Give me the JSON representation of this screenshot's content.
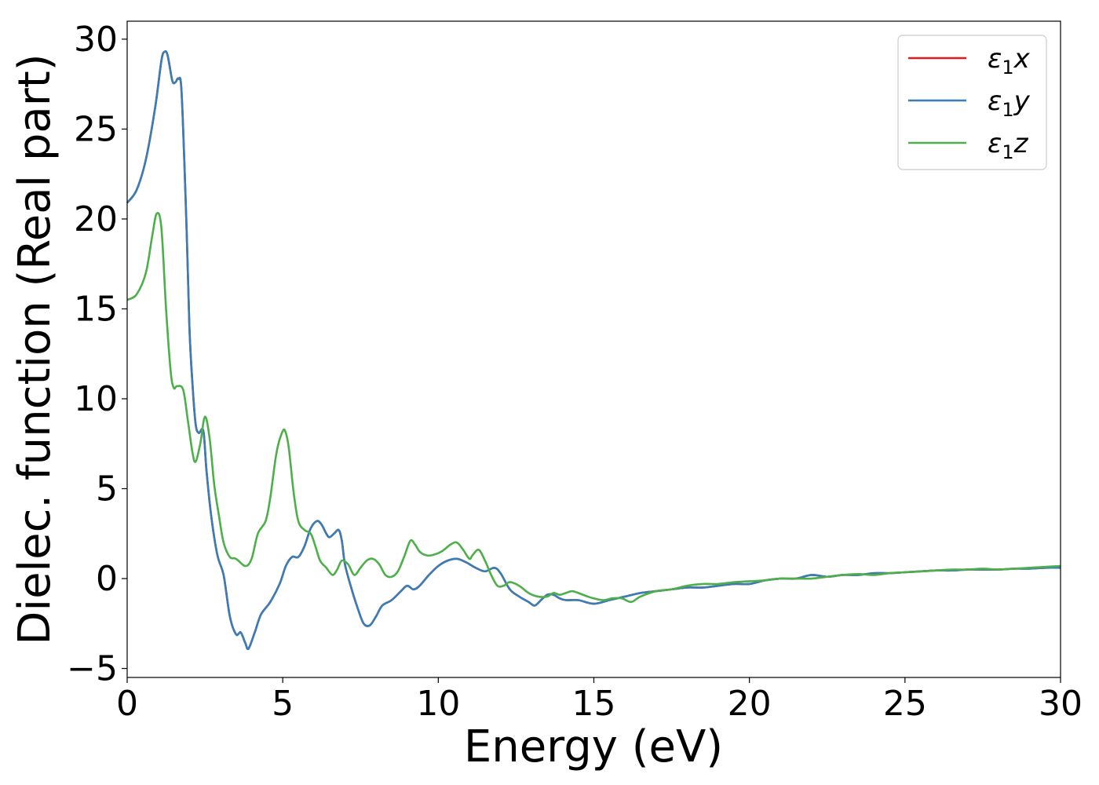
{
  "chart_data": {
    "type": "line",
    "xlabel": "Energy (eV)",
    "ylabel": "Dielec. function (Real part)",
    "xlim": [
      0,
      30
    ],
    "ylim": [
      -5.5,
      31
    ],
    "xticks": [
      0,
      5,
      10,
      15,
      20,
      25,
      30
    ],
    "yticks": [
      -5,
      0,
      5,
      10,
      15,
      20,
      25,
      30
    ],
    "xtick_labels": [
      "0",
      "5",
      "10",
      "15",
      "20",
      "25",
      "30"
    ],
    "ytick_labels": [
      "−5",
      "0",
      "5",
      "10",
      "15",
      "20",
      "25",
      "30"
    ],
    "grid": false,
    "legend_position": "top-right",
    "series": [
      {
        "name": "x",
        "color": "#e41a1c",
        "x": [
          0,
          0.3,
          0.6,
          0.9,
          1.1,
          1.2,
          1.3,
          1.45,
          1.55,
          1.65,
          1.75,
          1.9,
          2.0,
          2.1,
          2.2,
          2.3,
          2.45,
          2.55,
          2.7,
          2.9,
          3.1,
          3.3,
          3.5,
          3.65,
          3.8,
          3.9,
          4.1,
          4.3,
          4.6,
          4.9,
          5.1,
          5.3,
          5.5,
          5.7,
          5.9,
          6.1,
          6.25,
          6.4,
          6.5,
          6.65,
          6.8,
          6.9,
          7.0,
          7.2,
          7.4,
          7.6,
          7.8,
          8.0,
          8.2,
          8.5,
          8.8,
          9.0,
          9.2,
          9.4,
          9.7,
          10.0,
          10.3,
          10.6,
          10.9,
          11.2,
          11.5,
          11.8,
          12.0,
          12.3,
          12.6,
          12.9,
          13.1,
          13.3,
          13.5,
          13.7,
          13.9,
          14.1,
          14.5,
          15.0,
          15.5,
          16.0,
          16.5,
          17.0,
          17.5,
          18.0,
          18.5,
          19.0,
          19.5,
          20.0,
          20.5,
          21.0,
          21.5,
          22.0,
          22.5,
          23.0,
          23.5,
          24.0,
          24.5,
          25.0,
          25.5,
          26.0,
          26.5,
          27.0,
          27.5,
          28.0,
          28.5,
          29.0,
          29.5,
          30.0
        ],
        "y": [
          20.9,
          21.6,
          23.3,
          26.2,
          28.8,
          29.3,
          29.1,
          27.7,
          27.6,
          27.8,
          27.0,
          20.0,
          14.0,
          10.8,
          8.6,
          8.1,
          8.2,
          6.0,
          3.5,
          1.3,
          0.2,
          -2.1,
          -3.1,
          -3.0,
          -3.6,
          -3.9,
          -3.0,
          -2.0,
          -1.3,
          -0.3,
          0.7,
          1.2,
          1.2,
          1.8,
          2.8,
          3.2,
          3.0,
          2.5,
          2.3,
          2.5,
          2.7,
          2.1,
          0.8,
          -0.5,
          -1.6,
          -2.5,
          -2.6,
          -2.1,
          -1.5,
          -1.2,
          -0.7,
          -0.4,
          -0.6,
          -0.4,
          0.2,
          0.7,
          1.0,
          1.1,
          0.9,
          0.6,
          0.4,
          0.6,
          0.3,
          -0.6,
          -1.0,
          -1.3,
          -1.5,
          -1.2,
          -0.9,
          -0.9,
          -1.1,
          -1.2,
          -1.2,
          -1.4,
          -1.2,
          -1.0,
          -0.8,
          -0.7,
          -0.6,
          -0.5,
          -0.5,
          -0.4,
          -0.3,
          -0.3,
          -0.1,
          0.0,
          0.0,
          0.2,
          0.1,
          0.2,
          0.2,
          0.3,
          0.3,
          0.35,
          0.4,
          0.45,
          0.45,
          0.5,
          0.5,
          0.5,
          0.55,
          0.55,
          0.6,
          0.6
        ]
      },
      {
        "name": "y",
        "color": "#377eb8",
        "x": [
          0,
          0.3,
          0.6,
          0.9,
          1.1,
          1.2,
          1.3,
          1.45,
          1.55,
          1.65,
          1.75,
          1.9,
          2.0,
          2.1,
          2.2,
          2.3,
          2.45,
          2.55,
          2.7,
          2.9,
          3.1,
          3.3,
          3.5,
          3.65,
          3.8,
          3.9,
          4.1,
          4.3,
          4.6,
          4.9,
          5.1,
          5.3,
          5.5,
          5.7,
          5.9,
          6.1,
          6.25,
          6.4,
          6.5,
          6.65,
          6.8,
          6.9,
          7.0,
          7.2,
          7.4,
          7.6,
          7.8,
          8.0,
          8.2,
          8.5,
          8.8,
          9.0,
          9.2,
          9.4,
          9.7,
          10.0,
          10.3,
          10.6,
          10.9,
          11.2,
          11.5,
          11.8,
          12.0,
          12.3,
          12.6,
          12.9,
          13.1,
          13.3,
          13.5,
          13.7,
          13.9,
          14.1,
          14.5,
          15.0,
          15.5,
          16.0,
          16.5,
          17.0,
          17.5,
          18.0,
          18.5,
          19.0,
          19.5,
          20.0,
          20.5,
          21.0,
          21.5,
          22.0,
          22.5,
          23.0,
          23.5,
          24.0,
          24.5,
          25.0,
          25.5,
          26.0,
          26.5,
          27.0,
          27.5,
          28.0,
          28.5,
          29.0,
          29.5,
          30.0
        ],
        "y": [
          20.9,
          21.6,
          23.3,
          26.2,
          28.8,
          29.3,
          29.1,
          27.7,
          27.6,
          27.8,
          27.0,
          20.0,
          14.0,
          10.8,
          8.6,
          8.1,
          8.2,
          6.0,
          3.5,
          1.3,
          0.2,
          -2.1,
          -3.1,
          -3.0,
          -3.6,
          -3.9,
          -3.0,
          -2.0,
          -1.3,
          -0.3,
          0.7,
          1.2,
          1.2,
          1.8,
          2.8,
          3.2,
          3.0,
          2.5,
          2.3,
          2.5,
          2.7,
          2.1,
          0.8,
          -0.5,
          -1.6,
          -2.5,
          -2.6,
          -2.1,
          -1.5,
          -1.2,
          -0.7,
          -0.4,
          -0.6,
          -0.4,
          0.2,
          0.7,
          1.0,
          1.1,
          0.9,
          0.6,
          0.4,
          0.6,
          0.3,
          -0.6,
          -1.0,
          -1.3,
          -1.5,
          -1.2,
          -0.9,
          -0.9,
          -1.1,
          -1.2,
          -1.2,
          -1.4,
          -1.2,
          -1.0,
          -0.8,
          -0.7,
          -0.6,
          -0.5,
          -0.5,
          -0.4,
          -0.3,
          -0.3,
          -0.1,
          0.0,
          0.0,
          0.2,
          0.1,
          0.2,
          0.2,
          0.3,
          0.3,
          0.35,
          0.4,
          0.45,
          0.45,
          0.5,
          0.5,
          0.5,
          0.55,
          0.55,
          0.6,
          0.6
        ]
      },
      {
        "name": "z",
        "color": "#4daf4a",
        "x": [
          0,
          0.3,
          0.6,
          0.8,
          0.95,
          1.1,
          1.25,
          1.4,
          1.5,
          1.6,
          1.8,
          1.95,
          2.1,
          2.2,
          2.35,
          2.5,
          2.65,
          2.8,
          2.95,
          3.1,
          3.3,
          3.5,
          3.8,
          4.0,
          4.2,
          4.45,
          4.6,
          4.8,
          5.0,
          5.1,
          5.2,
          5.35,
          5.5,
          5.7,
          5.9,
          6.05,
          6.2,
          6.4,
          6.6,
          6.75,
          6.9,
          7.1,
          7.3,
          7.5,
          7.7,
          7.9,
          8.1,
          8.3,
          8.5,
          8.7,
          8.9,
          9.1,
          9.25,
          9.4,
          9.6,
          9.8,
          10.1,
          10.4,
          10.6,
          10.8,
          11.0,
          11.1,
          11.3,
          11.5,
          11.7,
          11.9,
          12.1,
          12.3,
          12.6,
          12.9,
          13.2,
          13.5,
          13.7,
          13.9,
          14.1,
          14.3,
          14.5,
          14.8,
          15.0,
          15.3,
          15.6,
          15.9,
          16.2,
          16.5,
          17.0,
          17.5,
          18.0,
          18.5,
          19.0,
          19.5,
          20.0,
          20.5,
          21.0,
          21.5,
          22.0,
          22.5,
          23.0,
          23.5,
          24.0,
          24.5,
          25.0,
          25.5,
          26.0,
          26.5,
          27.0,
          27.5,
          28.0,
          28.5,
          29.0,
          29.5,
          30.0
        ],
        "y": [
          15.5,
          15.8,
          17.0,
          19.0,
          20.3,
          19.5,
          15.0,
          11.5,
          10.6,
          10.7,
          10.5,
          8.8,
          7.0,
          6.5,
          7.5,
          9.0,
          7.8,
          5.2,
          3.5,
          2.0,
          1.2,
          1.1,
          0.7,
          1.1,
          2.5,
          3.2,
          4.5,
          7.0,
          8.2,
          8.1,
          7.2,
          4.8,
          3.2,
          2.7,
          2.5,
          1.8,
          1.0,
          0.6,
          0.2,
          0.5,
          1.0,
          0.8,
          0.2,
          0.6,
          1.0,
          1.1,
          0.8,
          0.2,
          0.1,
          0.4,
          1.2,
          2.1,
          1.9,
          1.5,
          1.3,
          1.3,
          1.5,
          1.9,
          2.0,
          1.6,
          1.1,
          1.3,
          1.6,
          1.0,
          0.2,
          -0.4,
          -0.4,
          -0.2,
          -0.4,
          -0.8,
          -1.0,
          -1.0,
          -0.8,
          -0.9,
          -0.8,
          -0.7,
          -0.8,
          -1.0,
          -1.1,
          -1.2,
          -1.1,
          -1.1,
          -1.3,
          -1.0,
          -0.7,
          -0.6,
          -0.4,
          -0.3,
          -0.3,
          -0.2,
          -0.15,
          -0.1,
          0.0,
          0.0,
          0.0,
          0.1,
          0.2,
          0.25,
          0.2,
          0.3,
          0.35,
          0.4,
          0.45,
          0.5,
          0.5,
          0.55,
          0.5,
          0.55,
          0.6,
          0.65,
          0.7
        ]
      }
    ]
  },
  "legend": {
    "entries": [
      {
        "symbol": "ε",
        "sub": "1",
        "suffix": "x",
        "color": "#e41a1c"
      },
      {
        "symbol": "ε",
        "sub": "1",
        "suffix": "y",
        "color": "#377eb8"
      },
      {
        "symbol": "ε",
        "sub": "1",
        "suffix": "z",
        "color": "#4daf4a"
      }
    ]
  }
}
